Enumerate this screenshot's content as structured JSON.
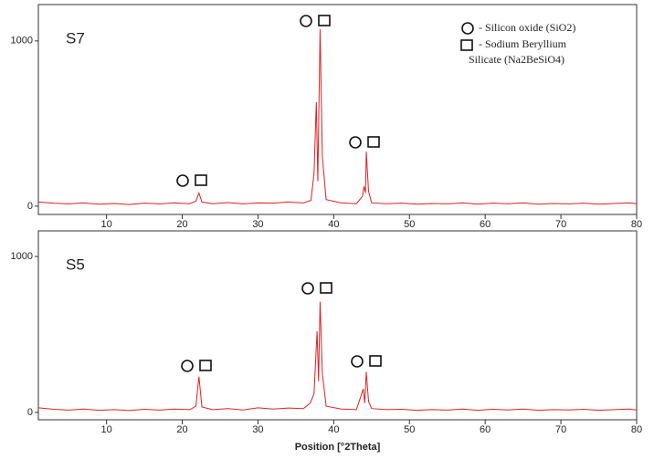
{
  "chart_data": [
    {
      "type": "line",
      "label": "S7",
      "color": "#e02020",
      "x": [
        1,
        3,
        5,
        7,
        9,
        11,
        13,
        15,
        17,
        19,
        21,
        21.8,
        22.2,
        22.6,
        24,
        26,
        28,
        30,
        32,
        34,
        36,
        37,
        37.4,
        37.7,
        37.9,
        38.2,
        38.5,
        39,
        41,
        43,
        43.8,
        44.0,
        44.2,
        44.3,
        44.6,
        45,
        47,
        49,
        51,
        53,
        55,
        57,
        59,
        61,
        63,
        65,
        67,
        69,
        71,
        73,
        75,
        77,
        79,
        80
      ],
      "values": [
        25,
        18,
        14,
        20,
        12,
        16,
        10,
        18,
        14,
        20,
        15,
        30,
        80,
        25,
        15,
        22,
        14,
        20,
        18,
        25,
        20,
        35,
        200,
        630,
        150,
        1070,
        300,
        40,
        20,
        15,
        60,
        120,
        80,
        330,
        90,
        20,
        15,
        18,
        12,
        16,
        14,
        20,
        12,
        18,
        15,
        20,
        12,
        16,
        14,
        18,
        12,
        16,
        20,
        15
      ],
      "xlim": [
        1,
        80
      ],
      "xticks": [
        10,
        20,
        30,
        40,
        50,
        60,
        70,
        80
      ],
      "ylim": [
        -50,
        1220
      ],
      "yticks": [
        0,
        1000
      ],
      "annotations": [
        "- Silicon oxide (SiO2)",
        "- Sodium Beryllium",
        "Silicate (Na2BeSiO4)"
      ]
    },
    {
      "type": "line",
      "label": "S5",
      "color": "#e02020",
      "x": [
        1,
        3,
        5,
        7,
        9,
        11,
        13,
        15,
        17,
        19,
        21,
        21.8,
        22.2,
        22.6,
        24,
        26,
        28,
        30,
        32,
        34,
        36,
        36.9,
        37.4,
        37.8,
        38.0,
        38.2,
        38.5,
        39,
        41,
        43,
        43.9,
        44.1,
        44.3,
        44.6,
        45,
        47,
        49,
        51,
        53,
        55,
        57,
        59,
        61,
        63,
        65,
        67,
        69,
        71,
        73,
        75,
        77,
        79,
        80
      ],
      "values": [
        30,
        20,
        15,
        22,
        14,
        18,
        12,
        20,
        15,
        22,
        18,
        40,
        230,
        35,
        18,
        25,
        16,
        30,
        22,
        28,
        25,
        60,
        120,
        520,
        200,
        710,
        250,
        40,
        22,
        18,
        150,
        60,
        260,
        70,
        25,
        18,
        20,
        14,
        18,
        15,
        22,
        14,
        20,
        16,
        22,
        14,
        18,
        16,
        20,
        14,
        18,
        22,
        16
      ],
      "xlim": [
        1,
        80
      ],
      "xticks": [
        10,
        20,
        30,
        40,
        50,
        60,
        70,
        80
      ],
      "ylim": [
        -47,
        1164
      ],
      "yticks": [
        0,
        1000
      ],
      "x_label": "Position [°2Theta]"
    }
  ]
}
